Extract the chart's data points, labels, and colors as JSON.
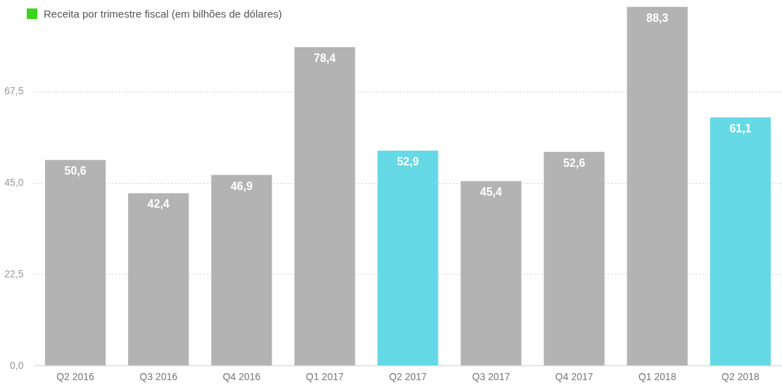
{
  "chart_data": {
    "type": "bar",
    "categories": [
      "Q2 2016",
      "Q3 2016",
      "Q4 2016",
      "Q1 2017",
      "Q2 2017",
      "Q3 2017",
      "Q4 2017",
      "Q1 2018",
      "Q2 2018"
    ],
    "series": [
      {
        "name": "Receita por trimestre fiscal (em bilhões de dólares)",
        "color": "#3ad41c",
        "colors": [
          "#b3b3b3",
          "#b3b3b3",
          "#b3b3b3",
          "#b3b3b3",
          "#66d9e6",
          "#b3b3b3",
          "#b3b3b3",
          "#b3b3b3",
          "#66d9e6"
        ],
        "values": [
          50.6,
          42.4,
          46.9,
          78.4,
          52.9,
          45.4,
          52.6,
          88.3,
          61.1
        ],
        "value_labels": [
          "50,6",
          "42,4",
          "46,9",
          "78,4",
          "52,9",
          "45,4",
          "52,6",
          "88,3",
          "61,1"
        ]
      }
    ],
    "ylim": [
      0,
      90
    ],
    "yticks": [
      {
        "value": 0,
        "label": "0,0"
      },
      {
        "value": 22.5,
        "label": "22,5"
      },
      {
        "value": 45,
        "label": "45,0"
      },
      {
        "value": 67.5,
        "label": "67,5"
      }
    ],
    "grid": "y",
    "legend": "top left"
  }
}
